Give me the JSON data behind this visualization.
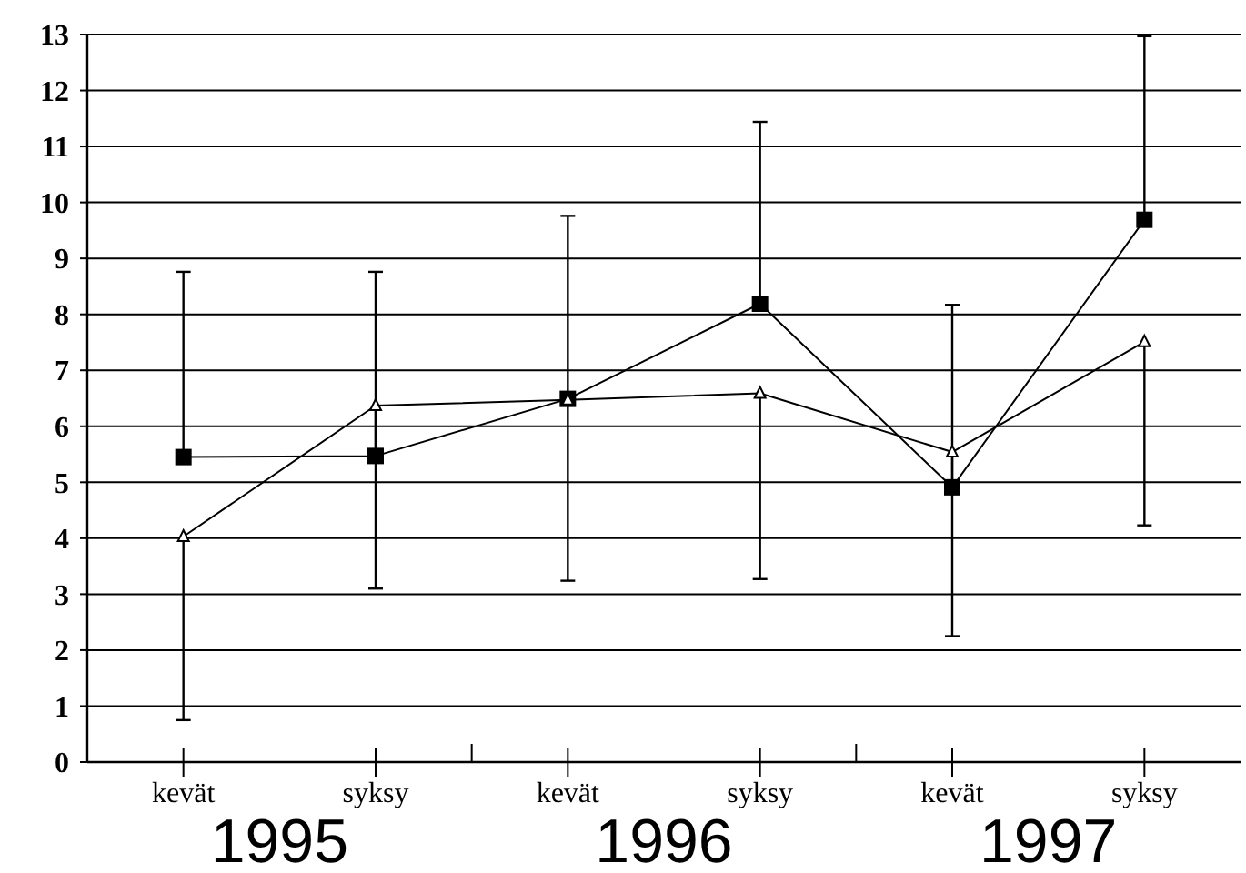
{
  "chart_data": {
    "type": "line",
    "categories": [
      "kevät",
      "syksy",
      "kevät",
      "syksy",
      "kevät",
      "syksy"
    ],
    "series": [
      {
        "color": "#000000",
        "marker": "square",
        "values": [
          5.45,
          5.47,
          6.49,
          8.19,
          4.91,
          9.69
        ],
        "errors": [
          [
            5.45,
            8.76
          ],
          [
            5.47,
            8.76
          ],
          [
            6.49,
            9.76
          ],
          [
            8.19,
            11.44
          ],
          [
            4.91,
            8.17
          ],
          [
            9.69,
            12.97
          ]
        ]
      },
      {
        "color": "#000000",
        "marker": "triangle",
        "values": [
          4.03,
          6.37,
          6.47,
          6.59,
          5.54,
          7.51
        ],
        "errors": [
          [
            0.75,
            4.03
          ],
          [
            3.1,
            6.37
          ],
          [
            3.24,
            6.47
          ],
          [
            3.27,
            6.59
          ],
          [
            2.25,
            5.54
          ],
          [
            4.23,
            7.51
          ]
        ]
      }
    ],
    "annotations": [
      "1995",
      "1996",
      "1997"
    ],
    "ylim": [
      0,
      13
    ],
    "yticks": [
      0,
      1,
      2,
      3,
      4,
      5,
      6,
      7,
      8,
      9,
      10,
      11,
      12,
      13
    ],
    "grid": "y"
  }
}
